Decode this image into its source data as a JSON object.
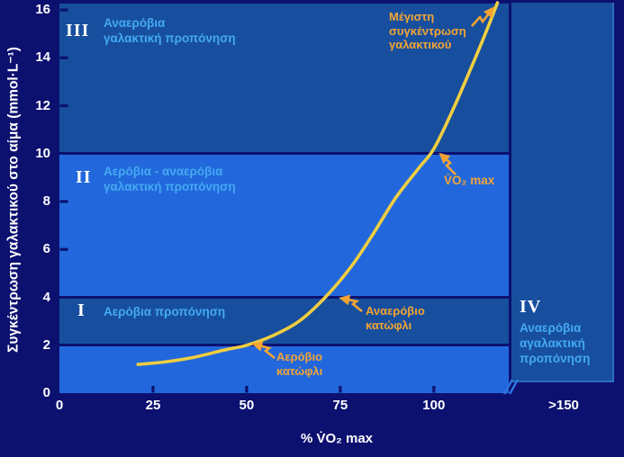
{
  "colors": {
    "background": "#0c1170",
    "band_dark": "#174f9e",
    "band_bright": "#2268dc",
    "zone_text": "#44a9f2",
    "annotation_orange": "#f3a434",
    "curve_yellow": "#f0ce40",
    "tick_text": "#ffffff"
  },
  "y_axis": {
    "title": "Συγκέντρωση γαλακτικού στο αίμα (mmol·L⁻¹)",
    "tick_labels": [
      "0",
      "2",
      "4",
      "6",
      "8",
      "10",
      "12",
      "14",
      "16"
    ]
  },
  "x_axis": {
    "title": "% V̇O₂ max",
    "tick_labels": [
      "0",
      "25",
      "50",
      "75",
      "100"
    ],
    "extra_tick_label": ">150"
  },
  "zones": [
    {
      "numeral": "III",
      "line1": "Αναερόβια",
      "line2": "γαλακτική προπόνηση"
    },
    {
      "numeral": "II",
      "line1": "Αερόβια - αναερόβια",
      "line2": "γαλακτική προπόνηση"
    },
    {
      "numeral": "I",
      "line1": "Αερόβια προπόνηση",
      "line2": ""
    },
    {
      "numeral": "IV",
      "line1": "Αναερόβια",
      "line2": "αγαλακτική",
      "line3": "προπόνηση"
    }
  ],
  "annotations": {
    "max_lactate": {
      "line1": "Μέγιστη",
      "line2": "συγκέντρωση",
      "line3": "γαλακτικού"
    },
    "vo2max": "V̇O₂ max",
    "anaerobic_threshold": {
      "line1": "Αναερόβιο",
      "line2": "κατώφλι"
    },
    "aerobic_threshold": {
      "line1": "Αερόβιο",
      "line2": "κατώφλι"
    }
  },
  "chart_data": {
    "type": "line",
    "title": "",
    "xlabel": "% V̇O₂ max",
    "ylabel": "Συγκέντρωση γαλακτικού στο αίμα (mmol·L⁻¹)",
    "xlim": [
      0,
      120
    ],
    "ylim": [
      0,
      16
    ],
    "x_ticks": [
      0,
      25,
      50,
      75,
      100
    ],
    "x_extra_tick": ">150",
    "y_ticks": [
      0,
      2,
      4,
      6,
      8,
      10,
      12,
      14,
      16
    ],
    "grid": false,
    "series": [
      {
        "name": "Συγκέντρωση γαλακτικού",
        "x": [
          21,
          28,
          36,
          44,
          50,
          57,
          64,
          71,
          78,
          84,
          90,
          96,
          100,
          105,
          110,
          114,
          117
        ],
        "y": [
          1.2,
          1.3,
          1.5,
          1.8,
          2.0,
          2.4,
          3.0,
          4.0,
          5.3,
          6.7,
          8.2,
          9.4,
          10.2,
          11.8,
          13.6,
          15.1,
          16.3
        ]
      }
    ],
    "bands": [
      {
        "zone": "",
        "y_from": 0,
        "y_to": 2,
        "fill": "bright",
        "label": ""
      },
      {
        "zone": "I",
        "y_from": 2,
        "y_to": 4,
        "fill": "dark",
        "label": "Αερόβια προπόνηση"
      },
      {
        "zone": "II",
        "y_from": 4,
        "y_to": 10,
        "fill": "bright",
        "label": "Αερόβια - αναερόβια γαλακτική προπόνηση"
      },
      {
        "zone": "III",
        "y_from": 10,
        "y_to": 16.3,
        "fill": "dark",
        "label": "Αναερόβια γαλακτική προπόνηση"
      },
      {
        "zone": "IV",
        "x_region": ">120",
        "fill": "dark",
        "label": "Αναερόβια αγαλακτική προπόνηση"
      }
    ],
    "key_points": [
      {
        "label": "Αερόβιο κατώφλι",
        "x": 50,
        "y": 2
      },
      {
        "label": "Αναερόβιο κατώφλι",
        "x": 72,
        "y": 4
      },
      {
        "label": "V̇O₂ max",
        "x": 100,
        "y": 10
      },
      {
        "label": "Μέγιστη συγκέντρωση γαλακτικού",
        "x": 117,
        "y": 16
      }
    ],
    "boundaries_y": [
      2,
      4,
      10
    ]
  }
}
